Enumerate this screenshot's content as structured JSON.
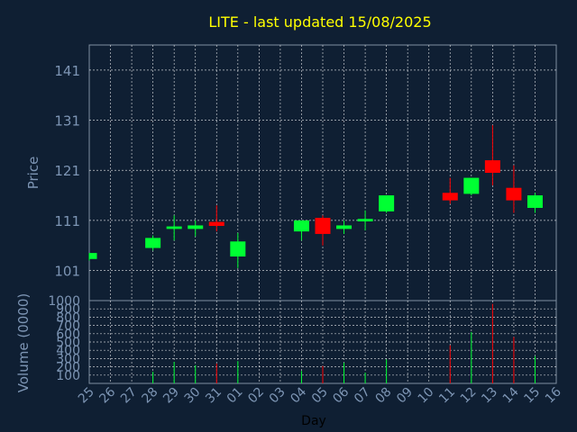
{
  "chart_data": {
    "type": "candlestick",
    "title": "LITE - last updated 15/08/2025",
    "price_axis": {
      "label": "Price",
      "ylim": [
        95,
        146
      ],
      "ticks": [
        101,
        111,
        121,
        131,
        141
      ]
    },
    "volume_axis": {
      "label": "Volume (0000)",
      "ylim": [
        0,
        1000
      ],
      "ticks": [
        100,
        200,
        300,
        400,
        500,
        600,
        700,
        800,
        900,
        1000
      ]
    },
    "xlabel": "Day",
    "x_ticks": [
      "25",
      "26",
      "27",
      "28",
      "29",
      "30",
      "31",
      "01",
      "02",
      "03",
      "04",
      "05",
      "06",
      "07",
      "08",
      "09",
      "10",
      "11",
      "12",
      "13",
      "14",
      "15",
      "16"
    ],
    "grid": true,
    "colors": {
      "background": "#0f1f33",
      "title": "#ffff00",
      "axis_text": "#7d95b4",
      "up": "#00ff33",
      "down": "#ff0000",
      "grid": "#ffffff",
      "frame": "#7f8fa0"
    },
    "candles": [
      {
        "day": "25",
        "open": 103.3,
        "high": 104.5,
        "low": 103.0,
        "close": 104.5,
        "volume": 0
      },
      {
        "day": "28",
        "open": 105.5,
        "high": 108.0,
        "low": 105.0,
        "close": 107.5,
        "volume": 140
      },
      {
        "day": "29",
        "open": 109.3,
        "high": 112.0,
        "low": 107.0,
        "close": 109.8,
        "volume": 260
      },
      {
        "day": "30",
        "open": 109.3,
        "high": 111.0,
        "low": 107.8,
        "close": 110.0,
        "volume": 220
      },
      {
        "day": "31",
        "open": 110.7,
        "high": 114.0,
        "low": 108.8,
        "close": 109.9,
        "volume": 240
      },
      {
        "day": "01",
        "open": 103.8,
        "high": 108.5,
        "low": 101.5,
        "close": 106.8,
        "volume": 270
      },
      {
        "day": "04",
        "open": 108.8,
        "high": 111.0,
        "low": 107.0,
        "close": 111.0,
        "volume": 150
      },
      {
        "day": "05",
        "open": 111.5,
        "high": 112.0,
        "low": 106.0,
        "close": 108.3,
        "volume": 210
      },
      {
        "day": "06",
        "open": 109.3,
        "high": 111.0,
        "low": 108.3,
        "close": 110.0,
        "volume": 250
      },
      {
        "day": "07",
        "open": 110.8,
        "high": 113.0,
        "low": 109.0,
        "close": 111.3,
        "volume": 130
      },
      {
        "day": "08",
        "open": 112.8,
        "high": 116.0,
        "low": 112.5,
        "close": 116.0,
        "volume": 290
      },
      {
        "day": "11",
        "open": 116.5,
        "high": 119.5,
        "low": 114.3,
        "close": 115.0,
        "volume": 460
      },
      {
        "day": "12",
        "open": 116.3,
        "high": 119.5,
        "low": 116.0,
        "close": 119.5,
        "volume": 620
      },
      {
        "day": "13",
        "open": 123.0,
        "high": 130.0,
        "low": 118.0,
        "close": 120.5,
        "volume": 960
      },
      {
        "day": "14",
        "open": 117.5,
        "high": 122.0,
        "low": 112.5,
        "close": 115.0,
        "volume": 560
      },
      {
        "day": "15",
        "open": 113.5,
        "high": 116.5,
        "low": 112.5,
        "close": 116.0,
        "volume": 330
      }
    ]
  }
}
